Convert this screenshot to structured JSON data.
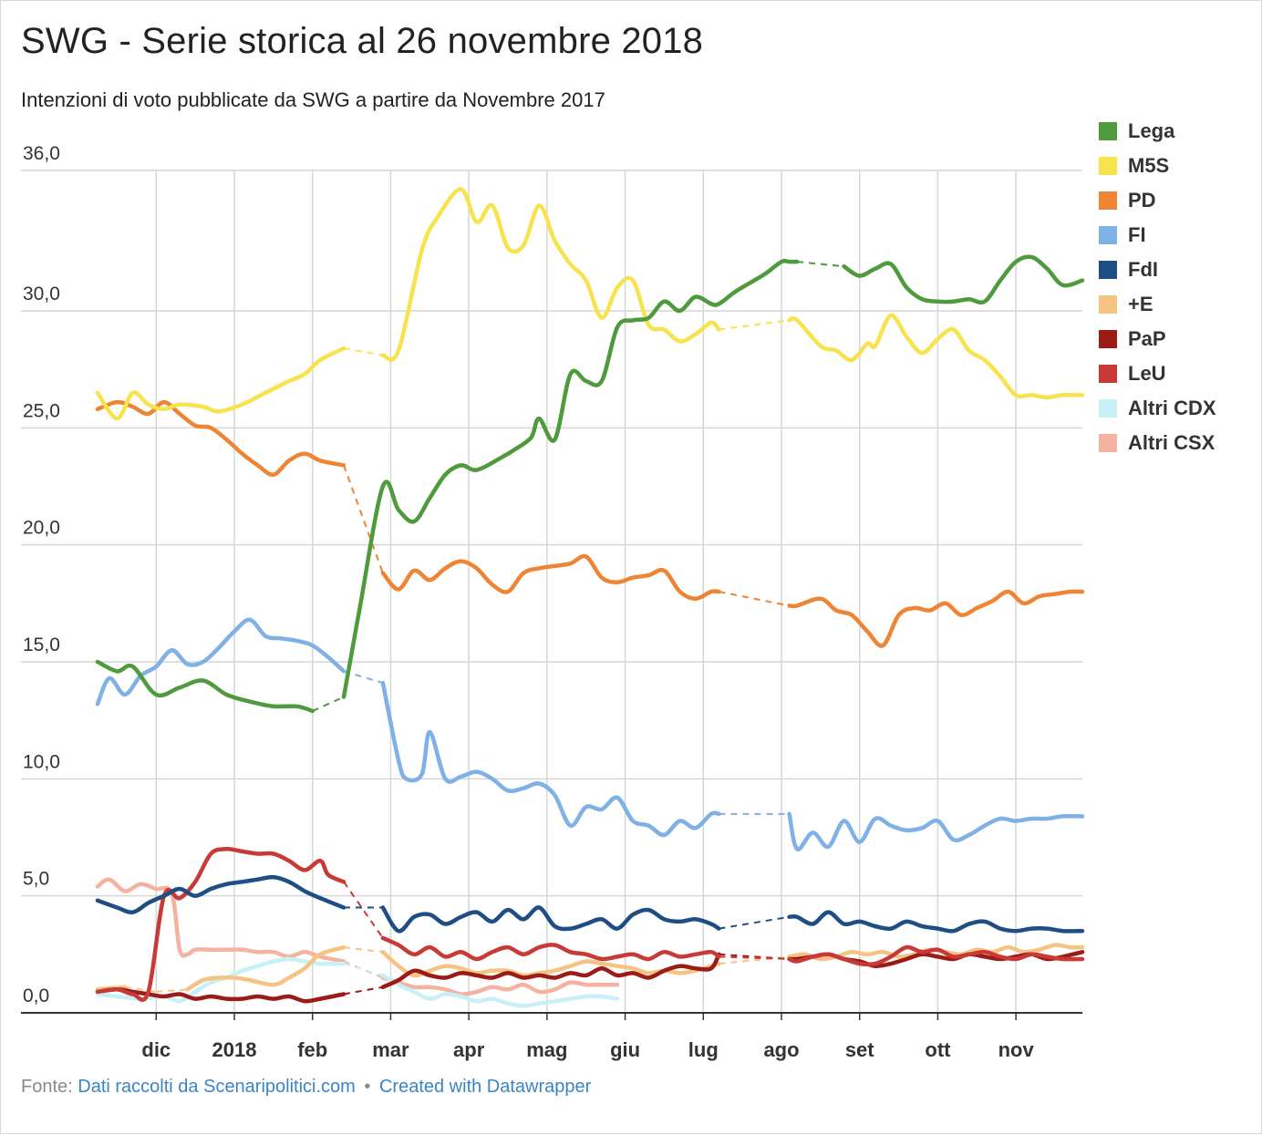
{
  "title": "SWG - Serie storica al 26 novembre 2018",
  "subtitle": "Intenzioni di voto pubblicate da SWG a partire da Novembre 2017",
  "footer": {
    "source_prefix": "Fonte:",
    "source_link": "Dati raccolti da Scenaripolitici.com",
    "separator": "•",
    "credit_link": "Created with Datawrapper"
  },
  "chart_data": {
    "type": "line",
    "ylim": [
      0,
      36
    ],
    "y_ticks": [
      "0,0",
      "5,0",
      "10,0",
      "15,0",
      "20,0",
      "25,0",
      "30,0",
      "36,0"
    ],
    "y_tick_values": [
      0,
      5,
      10,
      15,
      20,
      25,
      30,
      36
    ],
    "x_ticks": [
      "dic",
      "2018",
      "feb",
      "mar",
      "apr",
      "mag",
      "giu",
      "lug",
      "ago",
      "set",
      "ott",
      "nov"
    ],
    "x_tick_months": [
      1,
      2,
      3,
      4,
      5,
      6,
      7,
      8,
      9,
      10,
      11,
      12
    ],
    "x_range_months": [
      0.25,
      12.85
    ],
    "grid": true,
    "legend_position": "right",
    "series": [
      {
        "name": "Lega",
        "color": "#4e9a3c",
        "width": 4.5,
        "x": [
          0.25,
          0.5,
          0.7,
          1.0,
          1.3,
          1.6,
          1.9,
          2.2,
          2.5,
          2.8,
          3.0,
          3.4,
          3.6,
          3.9,
          4.1,
          4.3,
          4.5,
          4.7,
          4.9,
          5.1,
          5.4,
          5.6,
          5.8,
          5.9,
          6.1,
          6.3,
          6.5,
          6.7,
          6.9,
          7.1,
          7.3,
          7.5,
          7.7,
          7.9,
          8.1,
          8.2,
          8.4,
          8.6,
          8.8,
          9.0,
          9.1,
          9.2,
          9.8,
          10.0,
          10.2,
          10.4,
          10.6,
          10.8,
          11.0,
          11.2,
          11.4,
          11.6,
          11.8,
          12.0,
          12.2,
          12.4,
          12.6,
          12.85
        ],
        "values": [
          15.0,
          14.6,
          14.8,
          13.6,
          13.9,
          14.2,
          13.6,
          13.3,
          13.1,
          13.1,
          12.9,
          13.5,
          17.2,
          22.5,
          21.5,
          21.0,
          22.0,
          23.0,
          23.4,
          23.2,
          23.7,
          24.1,
          24.6,
          25.4,
          24.5,
          27.3,
          27.0,
          27.0,
          29.3,
          29.6,
          29.7,
          30.4,
          30.0,
          30.6,
          30.3,
          30.3,
          30.8,
          31.2,
          31.6,
          32.1,
          32.1,
          32.1,
          31.9,
          31.5,
          31.8,
          32.0,
          31.0,
          30.5,
          30.4,
          30.4,
          30.5,
          30.4,
          31.3,
          32.1,
          32.3,
          31.8,
          31.1,
          31.3
        ]
      },
      {
        "name": "M5S",
        "color": "#f7e34d",
        "width": 4.5,
        "x": [
          0.25,
          0.5,
          0.7,
          0.9,
          1.1,
          1.3,
          1.6,
          1.8,
          2.1,
          2.4,
          2.7,
          2.9,
          3.1,
          3.4,
          3.9,
          4.1,
          4.4,
          4.6,
          4.9,
          5.1,
          5.3,
          5.5,
          5.7,
          5.9,
          6.1,
          6.3,
          6.5,
          6.7,
          6.9,
          7.1,
          7.3,
          7.5,
          7.7,
          7.9,
          8.1,
          8.2,
          9.1,
          9.2,
          9.5,
          9.7,
          9.9,
          10.1,
          10.2,
          10.4,
          10.6,
          10.8,
          11.0,
          11.2,
          11.4,
          11.6,
          11.8,
          12.0,
          12.2,
          12.4,
          12.6,
          12.85
        ],
        "values": [
          26.5,
          25.4,
          26.5,
          26.0,
          25.8,
          26.0,
          25.9,
          25.7,
          26.0,
          26.5,
          27.0,
          27.3,
          27.9,
          28.4,
          28.1,
          28.3,
          32.6,
          34.0,
          35.2,
          33.8,
          34.5,
          32.7,
          32.8,
          34.5,
          33.0,
          32.0,
          31.3,
          29.7,
          31.0,
          31.3,
          29.4,
          29.2,
          28.7,
          29.0,
          29.5,
          29.2,
          29.6,
          29.6,
          28.5,
          28.3,
          27.9,
          28.6,
          28.5,
          29.8,
          28.9,
          28.2,
          28.8,
          29.2,
          28.3,
          27.9,
          27.2,
          26.4,
          26.4,
          26.3,
          26.4,
          26.4
        ]
      },
      {
        "name": "PD",
        "color": "#ee8535",
        "width": 4.5,
        "x": [
          0.25,
          0.5,
          0.7,
          0.9,
          1.1,
          1.3,
          1.5,
          1.7,
          1.9,
          2.1,
          2.3,
          2.5,
          2.7,
          2.9,
          3.1,
          3.4,
          3.9,
          4.1,
          4.3,
          4.5,
          4.7,
          4.9,
          5.1,
          5.3,
          5.5,
          5.7,
          5.9,
          6.1,
          6.3,
          6.5,
          6.7,
          6.9,
          7.1,
          7.3,
          7.5,
          7.7,
          7.9,
          8.1,
          8.2,
          9.1,
          9.2,
          9.5,
          9.7,
          9.9,
          10.1,
          10.3,
          10.5,
          10.7,
          10.9,
          11.1,
          11.3,
          11.5,
          11.7,
          11.9,
          12.1,
          12.3,
          12.5,
          12.7,
          12.85
        ],
        "values": [
          25.8,
          26.1,
          25.9,
          25.6,
          26.1,
          25.6,
          25.1,
          25.0,
          24.5,
          23.9,
          23.4,
          23.0,
          23.6,
          23.9,
          23.6,
          23.4,
          18.8,
          18.1,
          18.9,
          18.5,
          19.0,
          19.3,
          19.0,
          18.3,
          18.0,
          18.8,
          19.0,
          19.1,
          19.2,
          19.5,
          18.6,
          18.4,
          18.6,
          18.7,
          18.9,
          18.0,
          17.7,
          18.0,
          18.0,
          17.4,
          17.4,
          17.7,
          17.2,
          17.0,
          16.3,
          15.7,
          17.0,
          17.3,
          17.2,
          17.5,
          17.0,
          17.3,
          17.6,
          18.0,
          17.5,
          17.8,
          17.9,
          18.0,
          18.0
        ]
      },
      {
        "name": "FI",
        "color": "#7fb0e6",
        "width": 4.5,
        "x": [
          0.25,
          0.4,
          0.6,
          0.8,
          1.0,
          1.2,
          1.4,
          1.6,
          1.8,
          2.0,
          2.2,
          2.4,
          2.6,
          2.8,
          3.0,
          3.2,
          3.4,
          3.9,
          4.1,
          4.2,
          4.4,
          4.5,
          4.7,
          4.9,
          5.1,
          5.3,
          5.5,
          5.7,
          5.9,
          6.1,
          6.3,
          6.5,
          6.7,
          6.9,
          7.1,
          7.3,
          7.5,
          7.7,
          7.9,
          8.1,
          8.2,
          9.1,
          9.2,
          9.4,
          9.6,
          9.8,
          10.0,
          10.2,
          10.4,
          10.6,
          10.8,
          11.0,
          11.2,
          11.4,
          11.6,
          11.8,
          12.0,
          12.2,
          12.4,
          12.6,
          12.85
        ],
        "values": [
          13.2,
          14.3,
          13.6,
          14.4,
          14.8,
          15.5,
          14.9,
          15.0,
          15.6,
          16.3,
          16.8,
          16.1,
          16.0,
          15.9,
          15.7,
          15.2,
          14.6,
          14.1,
          10.8,
          10.0,
          10.2,
          12.0,
          10.0,
          10.1,
          10.3,
          10.0,
          9.5,
          9.6,
          9.8,
          9.3,
          8.0,
          8.8,
          8.7,
          9.2,
          8.2,
          8.0,
          7.6,
          8.2,
          7.9,
          8.5,
          8.5,
          8.5,
          7.0,
          7.7,
          7.1,
          8.2,
          7.3,
          8.3,
          8.0,
          7.8,
          7.9,
          8.2,
          7.4,
          7.6,
          8.0,
          8.3,
          8.2,
          8.3,
          8.3,
          8.4,
          8.4
        ]
      },
      {
        "name": "FdI",
        "color": "#1f4e85",
        "width": 4.5,
        "x": [
          0.25,
          0.5,
          0.7,
          0.9,
          1.1,
          1.3,
          1.5,
          1.7,
          1.9,
          2.1,
          2.3,
          2.5,
          2.7,
          2.9,
          3.1,
          3.4,
          3.9,
          4.1,
          4.3,
          4.5,
          4.7,
          4.9,
          5.1,
          5.3,
          5.5,
          5.7,
          5.9,
          6.1,
          6.3,
          6.5,
          6.7,
          6.9,
          7.1,
          7.3,
          7.5,
          7.7,
          7.9,
          8.1,
          8.2,
          9.1,
          9.2,
          9.4,
          9.6,
          9.8,
          10.0,
          10.2,
          10.4,
          10.6,
          10.8,
          11.0,
          11.2,
          11.4,
          11.6,
          11.8,
          12.0,
          12.2,
          12.4,
          12.6,
          12.85
        ],
        "values": [
          4.8,
          4.5,
          4.3,
          4.7,
          5.0,
          5.3,
          5.0,
          5.3,
          5.5,
          5.6,
          5.7,
          5.8,
          5.6,
          5.2,
          4.9,
          4.5,
          4.5,
          3.5,
          4.1,
          4.2,
          3.8,
          4.1,
          4.3,
          3.9,
          4.4,
          4.0,
          4.5,
          3.7,
          3.6,
          3.8,
          4.0,
          3.6,
          4.2,
          4.4,
          4.0,
          3.9,
          4.0,
          3.8,
          3.6,
          4.1,
          4.1,
          3.8,
          4.3,
          3.8,
          3.9,
          3.7,
          3.6,
          3.9,
          3.7,
          3.6,
          3.5,
          3.8,
          3.9,
          3.6,
          3.5,
          3.6,
          3.6,
          3.5,
          3.5
        ]
      },
      {
        "name": "+E",
        "color": "#f5c482",
        "width": 4.5,
        "x": [
          0.25,
          0.6,
          1.0,
          1.4,
          1.6,
          1.8,
          2.0,
          2.2,
          2.5,
          2.7,
          2.9,
          3.1,
          3.4,
          3.9,
          4.1,
          4.3,
          4.5,
          4.7,
          4.9,
          5.1,
          5.3,
          5.5,
          5.7,
          5.9,
          6.1,
          6.3,
          6.5,
          6.7,
          6.9,
          7.1,
          7.3,
          7.5,
          7.7,
          7.9,
          8.1,
          8.2,
          9.1,
          9.3,
          9.5,
          9.7,
          9.9,
          10.1,
          10.3,
          10.5,
          10.7,
          10.9,
          11.1,
          11.3,
          11.5,
          11.7,
          11.9,
          12.1,
          12.3,
          12.5,
          12.7,
          12.85
        ],
        "values": [
          1.0,
          1.1,
          0.9,
          1.0,
          1.4,
          1.5,
          1.5,
          1.4,
          1.2,
          1.5,
          1.9,
          2.5,
          2.8,
          2.6,
          2.0,
          1.6,
          1.8,
          2.0,
          1.9,
          1.7,
          1.8,
          1.8,
          1.6,
          1.7,
          1.8,
          2.0,
          2.2,
          2.1,
          2.0,
          1.9,
          1.7,
          1.8,
          1.7,
          1.8,
          2.0,
          2.1,
          2.4,
          2.5,
          2.3,
          2.4,
          2.6,
          2.5,
          2.6,
          2.4,
          2.5,
          2.7,
          2.6,
          2.5,
          2.7,
          2.6,
          2.8,
          2.6,
          2.7,
          2.9,
          2.8,
          2.8
        ]
      },
      {
        "name": "PaP",
        "color": "#9b1b16",
        "width": 4.5,
        "x": [
          0.25,
          0.5,
          0.7,
          0.9,
          1.1,
          1.3,
          1.5,
          1.7,
          1.9,
          2.1,
          2.3,
          2.5,
          2.7,
          2.9,
          3.1,
          3.4,
          3.9,
          4.1,
          4.3,
          4.5,
          4.7,
          4.9,
          5.1,
          5.3,
          5.5,
          5.7,
          5.9,
          6.1,
          6.3,
          6.5,
          6.7,
          6.9,
          7.1,
          7.3,
          7.5,
          7.7,
          7.9,
          8.1,
          8.2,
          9.1,
          9.2,
          9.4,
          9.6,
          9.8,
          10.0,
          10.2,
          10.4,
          10.6,
          10.8,
          11.0,
          11.2,
          11.4,
          11.6,
          11.8,
          12.0,
          12.2,
          12.4,
          12.6,
          12.85
        ],
        "values": [
          0.9,
          1.0,
          0.9,
          0.8,
          0.7,
          0.8,
          0.6,
          0.7,
          0.6,
          0.6,
          0.7,
          0.6,
          0.7,
          0.5,
          0.6,
          0.8,
          1.1,
          1.4,
          1.8,
          1.6,
          1.5,
          1.7,
          1.6,
          1.5,
          1.7,
          1.5,
          1.6,
          1.5,
          1.7,
          1.6,
          1.9,
          1.6,
          1.7,
          1.5,
          1.8,
          2.0,
          1.9,
          1.9,
          2.5,
          2.3,
          2.3,
          2.4,
          2.5,
          2.3,
          2.2,
          2.0,
          2.1,
          2.3,
          2.5,
          2.4,
          2.3,
          2.5,
          2.4,
          2.3,
          2.4,
          2.5,
          2.3,
          2.4,
          2.6
        ]
      },
      {
        "name": "LeU",
        "color": "#c93a36",
        "width": 4.5,
        "x": [
          0.25,
          0.5,
          0.7,
          0.9,
          1.1,
          1.3,
          1.5,
          1.7,
          1.9,
          2.1,
          2.3,
          2.5,
          2.7,
          2.9,
          3.1,
          3.2,
          3.4,
          3.9,
          4.1,
          4.3,
          4.5,
          4.7,
          4.9,
          5.1,
          5.3,
          5.5,
          5.7,
          5.9,
          6.1,
          6.3,
          6.5,
          6.7,
          6.9,
          7.1,
          7.3,
          7.5,
          7.7,
          7.9,
          8.1,
          8.2,
          9.1,
          9.2,
          9.4,
          9.6,
          9.8,
          10.0,
          10.2,
          10.4,
          10.6,
          10.8,
          11.0,
          11.2,
          11.4,
          11.6,
          11.8,
          12.0,
          12.2,
          12.4,
          12.6,
          12.85
        ],
        "values": [
          0.9,
          1.0,
          0.8,
          0.9,
          5.0,
          4.9,
          5.6,
          6.8,
          7.0,
          6.9,
          6.8,
          6.8,
          6.5,
          6.1,
          6.5,
          5.9,
          5.6,
          3.2,
          2.9,
          2.5,
          2.8,
          2.4,
          2.6,
          2.3,
          2.6,
          2.8,
          2.5,
          2.8,
          2.9,
          2.6,
          2.5,
          2.3,
          2.4,
          2.5,
          2.3,
          2.6,
          2.4,
          2.5,
          2.6,
          2.4,
          2.3,
          2.2,
          2.4,
          2.5,
          2.3,
          2.1,
          2.1,
          2.4,
          2.8,
          2.6,
          2.7,
          2.4,
          2.5,
          2.6,
          2.4,
          2.3,
          2.5,
          2.4,
          2.3,
          2.3
        ]
      },
      {
        "name": "Altri CDX",
        "color": "#c8f0f7",
        "width": 4.5,
        "x": [
          0.25,
          0.5,
          0.8,
          1.1,
          1.3,
          1.5,
          1.7,
          1.9,
          2.1,
          2.3,
          2.5,
          2.7,
          2.9,
          3.1,
          3.4,
          3.9,
          4.1,
          4.3,
          4.5,
          4.7,
          4.9,
          5.1,
          5.3,
          5.5,
          5.7,
          5.9,
          6.1,
          6.3,
          6.5,
          6.7,
          6.9
        ],
        "values": [
          0.8,
          0.7,
          0.6,
          0.7,
          0.5,
          0.9,
          1.3,
          1.5,
          1.8,
          2.0,
          2.2,
          2.3,
          2.2,
          2.1,
          2.1,
          1.6,
          1.2,
          0.9,
          0.6,
          0.8,
          0.7,
          0.5,
          0.6,
          0.4,
          0.3,
          0.4,
          0.5,
          0.6,
          0.7,
          0.7,
          0.6
        ]
      },
      {
        "name": "Altri CSX",
        "color": "#f4b3a0",
        "width": 4.5,
        "x": [
          0.25,
          0.4,
          0.6,
          0.8,
          1.0,
          1.2,
          1.3,
          1.4,
          1.5,
          1.7,
          1.9,
          2.1,
          2.3,
          2.5,
          2.7,
          2.9,
          3.1,
          3.4,
          3.9,
          4.1,
          4.3,
          4.5,
          4.7,
          4.9,
          5.1,
          5.3,
          5.5,
          5.7,
          5.9,
          6.1,
          6.3,
          6.5,
          6.7,
          6.9
        ],
        "values": [
          5.4,
          5.7,
          5.2,
          5.5,
          5.3,
          5.1,
          2.7,
          2.5,
          2.7,
          2.7,
          2.7,
          2.7,
          2.6,
          2.6,
          2.4,
          2.6,
          2.4,
          2.2,
          1.5,
          1.3,
          1.1,
          1.1,
          1.0,
          0.8,
          0.9,
          1.1,
          1.0,
          1.2,
          0.9,
          1.0,
          1.3,
          1.2,
          1.2,
          1.2
        ]
      }
    ]
  }
}
